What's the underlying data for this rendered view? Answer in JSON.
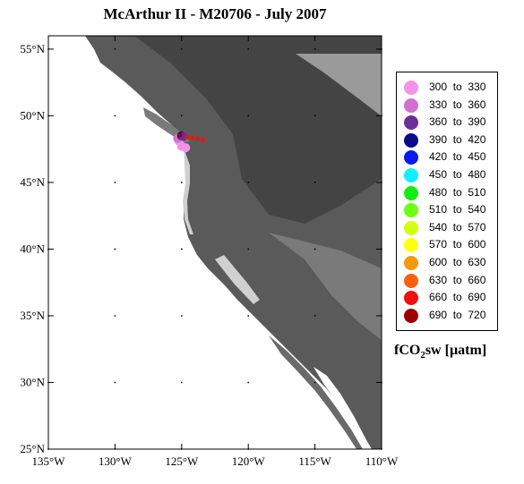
{
  "title": "McArthur II - M20706 - July 2007",
  "map": {
    "lon_range": [
      -135,
      -110
    ],
    "lat_range": [
      25,
      56
    ],
    "lat_ticks": [
      "55°N",
      "50°N",
      "45°N",
      "40°N",
      "35°N",
      "30°N",
      "25°N"
    ],
    "lon_ticks": [
      "135°W",
      "130°W",
      "125°W",
      "120°W",
      "115°W",
      "110°W"
    ],
    "ocean_color": "#ffffff",
    "land_colors": [
      "#4e4e4e",
      "#6a6a6a",
      "#8a8a8a",
      "#b0b0b0",
      "#dcdcdc"
    ],
    "track_points": [
      {
        "lon": -125.2,
        "lat": 48.1,
        "band": 0
      },
      {
        "lon": -125.0,
        "lat": 47.7,
        "band": 0
      },
      {
        "lon": -124.7,
        "lat": 47.6,
        "band": 0
      },
      {
        "lon": -125.3,
        "lat": 48.3,
        "band": 1
      },
      {
        "lon": -125.0,
        "lat": 48.5,
        "band": 3
      },
      {
        "lon": -124.9,
        "lat": 48.45,
        "band": 2
      },
      {
        "lon": -124.6,
        "lat": 48.4,
        "band": 12
      },
      {
        "lon": -124.2,
        "lat": 48.35,
        "band": 12
      },
      {
        "lon": -123.8,
        "lat": 48.3,
        "band": 12
      },
      {
        "lon": -123.4,
        "lat": 48.2,
        "band": 12
      },
      {
        "lon": -125.1,
        "lat": 48.55,
        "band": 13
      }
    ]
  },
  "legend": {
    "items": [
      {
        "label": "300  to  330",
        "color": "#f293e8"
      },
      {
        "label": "330  to  360",
        "color": "#d070d0"
      },
      {
        "label": "360  to  390",
        "color": "#6a2e9a"
      },
      {
        "label": "390  to  420",
        "color": "#0a0a88"
      },
      {
        "label": "420  to  450",
        "color": "#0a1aef"
      },
      {
        "label": "450  to  480",
        "color": "#10f0ff"
      },
      {
        "label": "480  to  510",
        "color": "#12ee12"
      },
      {
        "label": "510  to  540",
        "color": "#6cff10"
      },
      {
        "label": "540  to  570",
        "color": "#d4ff10"
      },
      {
        "label": "570  to  600",
        "color": "#ffff14"
      },
      {
        "label": "600  to  630",
        "color": "#f29a0a"
      },
      {
        "label": "630  to  660",
        "color": "#ff6010"
      },
      {
        "label": "660  to  690",
        "color": "#f01010"
      },
      {
        "label": "690  to  720",
        "color": "#9a0000"
      }
    ]
  },
  "units": {
    "prefix": "fCO",
    "subscript": "2",
    "suffix": "sw [µatm]"
  }
}
